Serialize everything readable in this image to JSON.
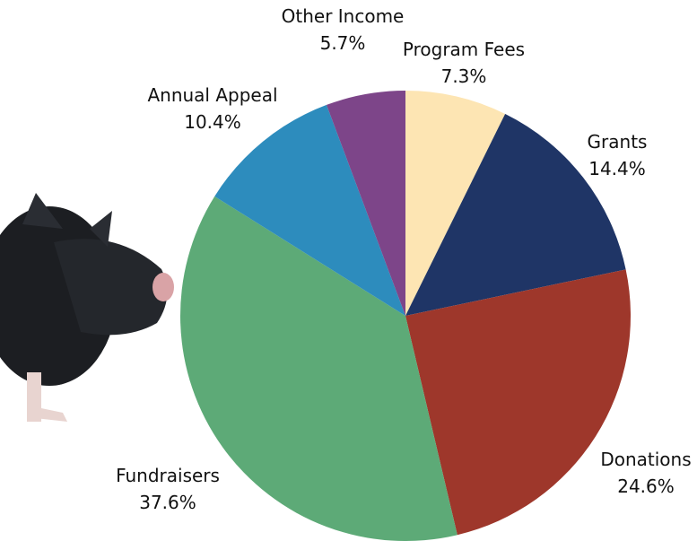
{
  "chart_data": {
    "type": "pie",
    "categories": [
      "Program Fees",
      "Grants",
      "Donations",
      "Fundraisers",
      "Annual Appeal",
      "Other Income"
    ],
    "values": [
      7.3,
      14.4,
      24.6,
      37.6,
      10.4,
      5.7
    ],
    "value_labels": [
      "7.3%",
      "14.4%",
      "24.6%",
      "37.6%",
      "10.4%",
      "5.7%"
    ],
    "colors": [
      "#fde5b3",
      "#1f3566",
      "#9e372b",
      "#5daa77",
      "#2d8cbd",
      "#7d4589"
    ]
  }
}
